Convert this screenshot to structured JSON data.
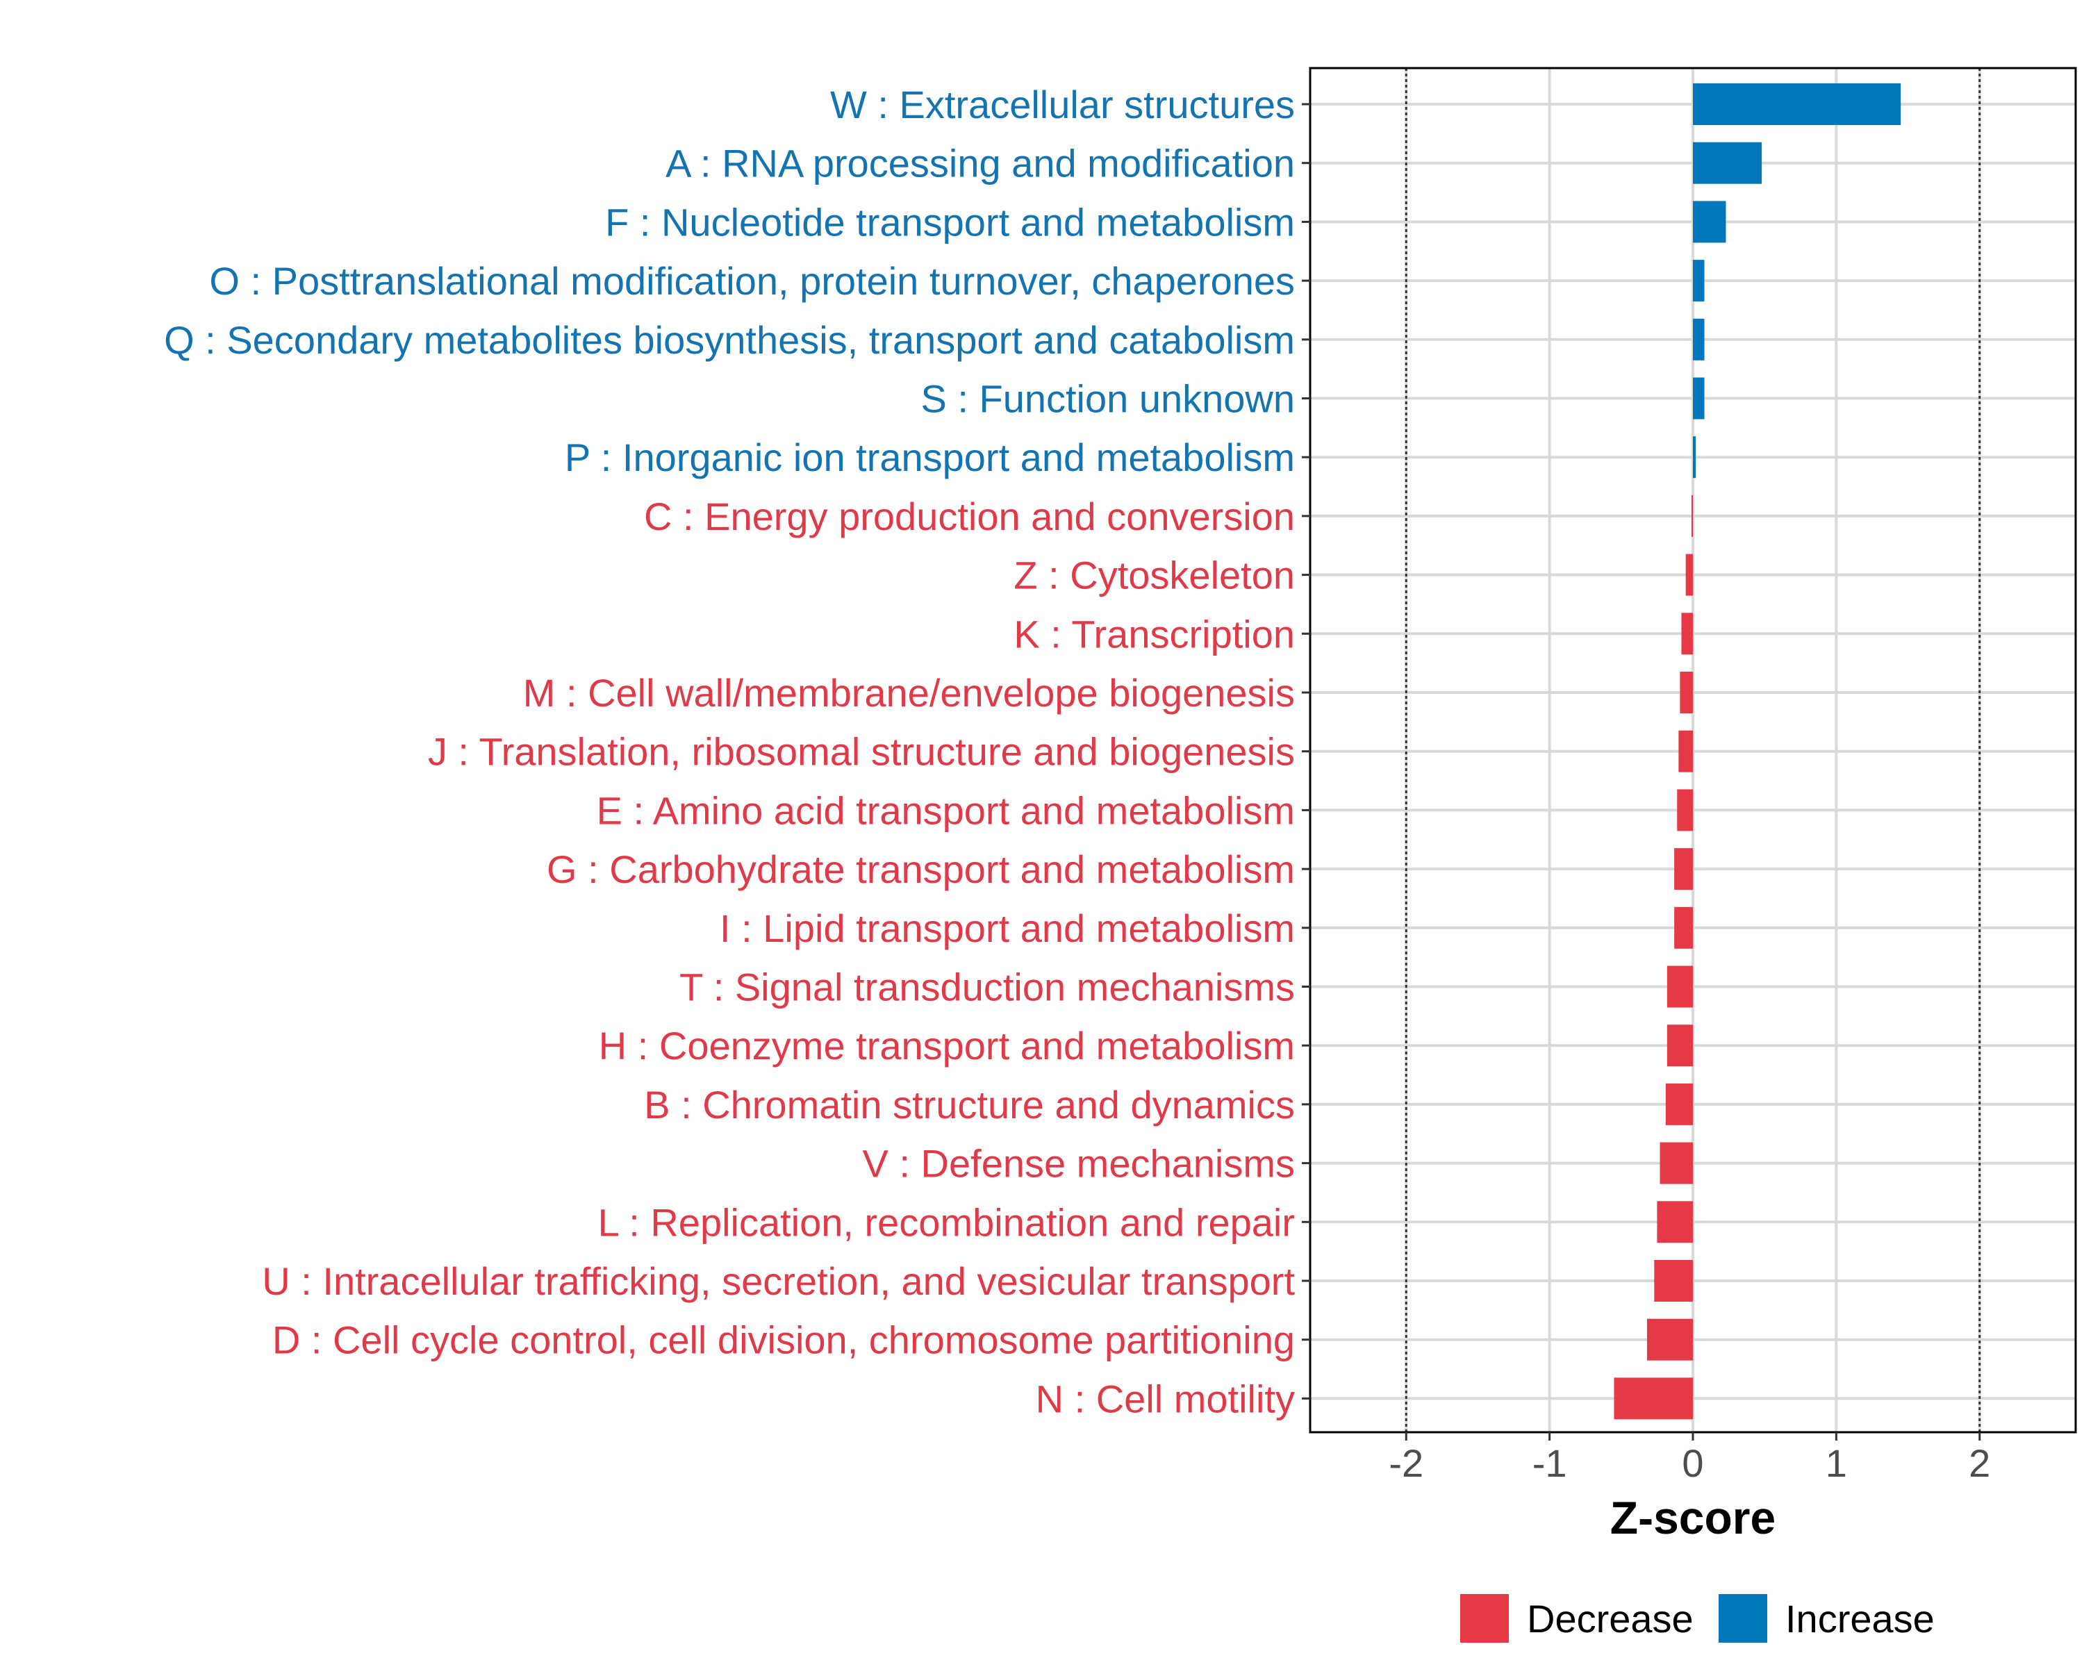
{
  "chart_data": {
    "type": "bar",
    "orientation": "horizontal",
    "xlabel": "Z-score",
    "xlim": [
      -2.67,
      2.67
    ],
    "xticks": [
      -2,
      -1,
      0,
      1,
      2
    ],
    "xtick_labels": [
      "-2",
      "-1",
      "0",
      "1",
      "2"
    ],
    "reference_lines": [
      -2,
      2
    ],
    "grid": true,
    "legend_position": "bottom",
    "colors": {
      "Decrease": "#e63946",
      "Increase": "#0077bb",
      "text_increase": "#1473b1",
      "text_decrease": "#e03a48"
    },
    "legend": [
      {
        "name": "Decrease",
        "color": "#e63946"
      },
      {
        "name": "Increase",
        "color": "#0077bb"
      }
    ],
    "categories": [
      "W : Extracellular structures",
      "A : RNA processing and modification",
      "F : Nucleotide transport and metabolism",
      "O : Posttranslational modification, protein turnover, chaperones",
      "Q : Secondary metabolites biosynthesis, transport and catabolism",
      "S : Function unknown",
      "P : Inorganic ion transport and metabolism",
      "C : Energy production and conversion",
      "Z : Cytoskeleton",
      "K : Transcription",
      "M : Cell wall/membrane/envelope biogenesis",
      "J : Translation, ribosomal structure and biogenesis",
      "E : Amino acid transport and metabolism",
      "G : Carbohydrate transport and metabolism",
      "I : Lipid transport and metabolism",
      "T : Signal transduction mechanisms",
      "H : Coenzyme transport and metabolism",
      "B : Chromatin structure and dynamics",
      "V : Defense mechanisms",
      "L : Replication, recombination and repair",
      "U : Intracellular trafficking, secretion, and vesicular transport",
      "D : Cell cycle control, cell division, chromosome partitioning",
      "N : Cell motility"
    ],
    "values": [
      1.45,
      0.48,
      0.23,
      0.08,
      0.08,
      0.08,
      0.02,
      -0.01,
      -0.05,
      -0.08,
      -0.09,
      -0.1,
      -0.11,
      -0.13,
      -0.13,
      -0.18,
      -0.18,
      -0.19,
      -0.23,
      -0.25,
      -0.27,
      -0.32,
      -0.55
    ],
    "groups": [
      "Increase",
      "Increase",
      "Increase",
      "Increase",
      "Increase",
      "Increase",
      "Increase",
      "Decrease",
      "Decrease",
      "Decrease",
      "Decrease",
      "Decrease",
      "Decrease",
      "Decrease",
      "Decrease",
      "Decrease",
      "Decrease",
      "Decrease",
      "Decrease",
      "Decrease",
      "Decrease",
      "Decrease",
      "Decrease"
    ]
  }
}
